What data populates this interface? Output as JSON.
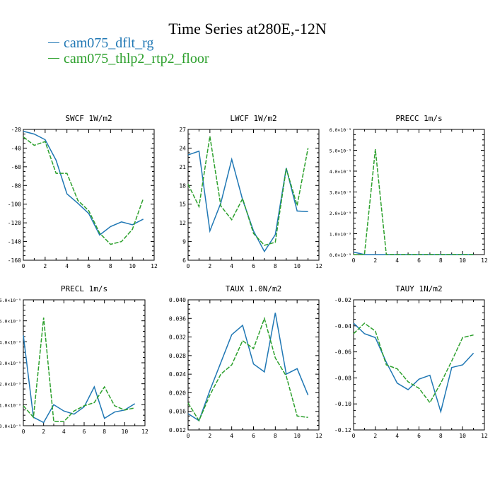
{
  "title": "Time Series at280E,-12N",
  "colors": {
    "series0": "#1f77b4",
    "series1": "#2ca02c"
  },
  "legend": [
    {
      "name": "cam075_dflt_rg",
      "color": "#1f77b4",
      "dash": ""
    },
    {
      "name": "cam075_thlp2_rtp2_floor",
      "color": "#2ca02c",
      "dash": "6,2"
    }
  ],
  "chart_data": [
    {
      "type": "line",
      "title": "SWCF   1W/m2",
      "x": [
        0,
        1,
        2,
        3,
        4,
        5,
        6,
        7,
        8,
        9,
        10,
        11
      ],
      "xlim": [
        0,
        12
      ],
      "xticks": [
        "0",
        "2",
        "4",
        "6",
        "8",
        "10",
        "12"
      ],
      "ylim": [
        -160,
        -20
      ],
      "yticks": [
        "-160",
        "-140",
        "-120",
        "-100",
        "-80",
        "-60",
        "-40",
        "-20"
      ],
      "series": [
        {
          "name": "cam075_dflt_rg",
          "values": [
            -22,
            -25,
            -31,
            -53,
            -89,
            -99,
            -110,
            -133,
            -124,
            -119,
            -122,
            -116
          ]
        },
        {
          "name": "cam075_thlp2_rtp2_floor",
          "values": [
            -28,
            -37,
            -33,
            -67,
            -67,
            -96,
            -107,
            -131,
            -143,
            -140,
            -127,
            -94
          ]
        }
      ]
    },
    {
      "type": "line",
      "title": "LWCF   1W/m2",
      "x": [
        0,
        1,
        2,
        3,
        4,
        5,
        6,
        7,
        8,
        9,
        10,
        11
      ],
      "xlim": [
        0,
        12
      ],
      "xticks": [
        "0",
        "2",
        "4",
        "6",
        "8",
        "10",
        "12"
      ],
      "ylim": [
        6,
        27
      ],
      "yticks": [
        "6",
        "9",
        "12",
        "15",
        "18",
        "21",
        "24",
        "27"
      ],
      "series": [
        {
          "name": "cam075_dflt_rg",
          "values": [
            22.9,
            23.5,
            10.7,
            15.2,
            22.2,
            15.7,
            10.7,
            7.4,
            10.1,
            20.8,
            13.9,
            13.8
          ]
        },
        {
          "name": "cam075_thlp2_rtp2_floor",
          "values": [
            18.2,
            14.6,
            25.9,
            14.7,
            12.5,
            15.9,
            10.3,
            8.4,
            8.9,
            20.7,
            14.8,
            24.0
          ]
        }
      ]
    },
    {
      "type": "line",
      "title": "PRECC   1m/s",
      "x": [
        0,
        1,
        2,
        3,
        4,
        5,
        6,
        7,
        8,
        9,
        10,
        11
      ],
      "xlim": [
        0,
        12
      ],
      "xticks": [
        "0",
        "2",
        "4",
        "6",
        "8",
        "10",
        "12"
      ],
      "ylim": [
        0,
        6e-09
      ],
      "yticks": [
        "0.0×10⁻⁹",
        "1.0×10⁻⁹",
        "2.0×10⁻⁹",
        "3.0×10⁻⁹",
        "4.0×10⁻⁹",
        "5.0×10⁻⁹",
        "6.0×10⁻⁹"
      ],
      "series": [
        {
          "name": "cam075_dflt_rg",
          "values": [
            1.2e-10,
            0,
            0,
            0,
            0,
            0,
            0,
            0,
            0,
            0,
            0,
            0
          ]
        },
        {
          "name": "cam075_thlp2_rtp2_floor",
          "values": [
            0,
            0,
            5.05e-09,
            0,
            0,
            0,
            0,
            0,
            0,
            0,
            0,
            0
          ]
        }
      ]
    },
    {
      "type": "line",
      "title": "PRECL   1m/s",
      "x": [
        0,
        1,
        2,
        3,
        4,
        5,
        6,
        7,
        8,
        9,
        10,
        11
      ],
      "xlim": [
        0,
        12
      ],
      "xticks": [
        "0",
        "2",
        "4",
        "6",
        "8",
        "10",
        "12"
      ],
      "ylim": [
        0,
        6e-09
      ],
      "yticks": [
        "0.0×10⁻⁹",
        "1.0×10⁻⁹",
        "2.0×10⁻⁹",
        "3.0×10⁻⁹",
        "4.0×10⁻⁹",
        "5.0×10⁻⁹",
        "6.0×10⁻⁹"
      ],
      "series": [
        {
          "name": "cam075_dflt_rg",
          "values": [
            4.3e-09,
            4e-10,
            1.5e-10,
            1e-09,
            7e-10,
            5.5e-10,
            9e-10,
            1.85e-09,
            3.5e-10,
            6.5e-10,
            7.5e-10,
            1.05e-09
          ]
        },
        {
          "name": "cam075_thlp2_rtp2_floor",
          "values": [
            9.5e-10,
            4e-10,
            5.15e-09,
            2e-10,
            2e-10,
            7e-10,
            9.5e-10,
            1.1e-09,
            1.85e-09,
            9.5e-10,
            7.5e-10,
            8.5e-10
          ]
        }
      ]
    },
    {
      "type": "line",
      "title": "TAUX   1.0N/m2",
      "x": [
        0,
        1,
        2,
        3,
        4,
        5,
        6,
        7,
        8,
        9,
        10,
        11
      ],
      "xlim": [
        0,
        12
      ],
      "xticks": [
        "0",
        "2",
        "4",
        "6",
        "8",
        "10",
        "12"
      ],
      "ylim": [
        0.012,
        0.04
      ],
      "yticks": [
        "0.012",
        "0.016",
        "0.020",
        "0.024",
        "0.028",
        "0.032",
        "0.036",
        "0.040"
      ],
      "series": [
        {
          "name": "cam075_dflt_rg",
          "values": [
            0.0155,
            0.014,
            0.0205,
            0.0265,
            0.0325,
            0.0345,
            0.0262,
            0.0245,
            0.0372,
            0.024,
            0.0252,
            0.0195
          ]
        },
        {
          "name": "cam075_thlp2_rtp2_floor",
          "values": [
            0.0178,
            0.014,
            0.0195,
            0.024,
            0.026,
            0.0312,
            0.0295,
            0.036,
            0.0275,
            0.0236,
            0.015,
            0.0147
          ]
        }
      ]
    },
    {
      "type": "line",
      "title": "TAUY   1N/m2",
      "x": [
        0,
        1,
        2,
        3,
        4,
        5,
        6,
        7,
        8,
        9,
        10,
        11
      ],
      "xlim": [
        0,
        12
      ],
      "xticks": [
        "0",
        "2",
        "4",
        "6",
        "8",
        "10",
        "12"
      ],
      "ylim": [
        -0.12,
        -0.02
      ],
      "yticks": [
        "-0.12",
        "-0.10",
        "-0.08",
        "-0.06",
        "-0.04",
        "-0.02"
      ],
      "series": [
        {
          "name": "cam075_dflt_rg",
          "values": [
            -0.038,
            -0.046,
            -0.049,
            -0.068,
            -0.084,
            -0.089,
            -0.081,
            -0.078,
            -0.106,
            -0.072,
            -0.07,
            -0.061
          ]
        },
        {
          "name": "cam075_thlp2_rtp2_floor",
          "values": [
            -0.046,
            -0.038,
            -0.044,
            -0.07,
            -0.073,
            -0.083,
            -0.088,
            -0.099,
            -0.084,
            -0.067,
            -0.049,
            -0.047
          ]
        }
      ]
    }
  ]
}
